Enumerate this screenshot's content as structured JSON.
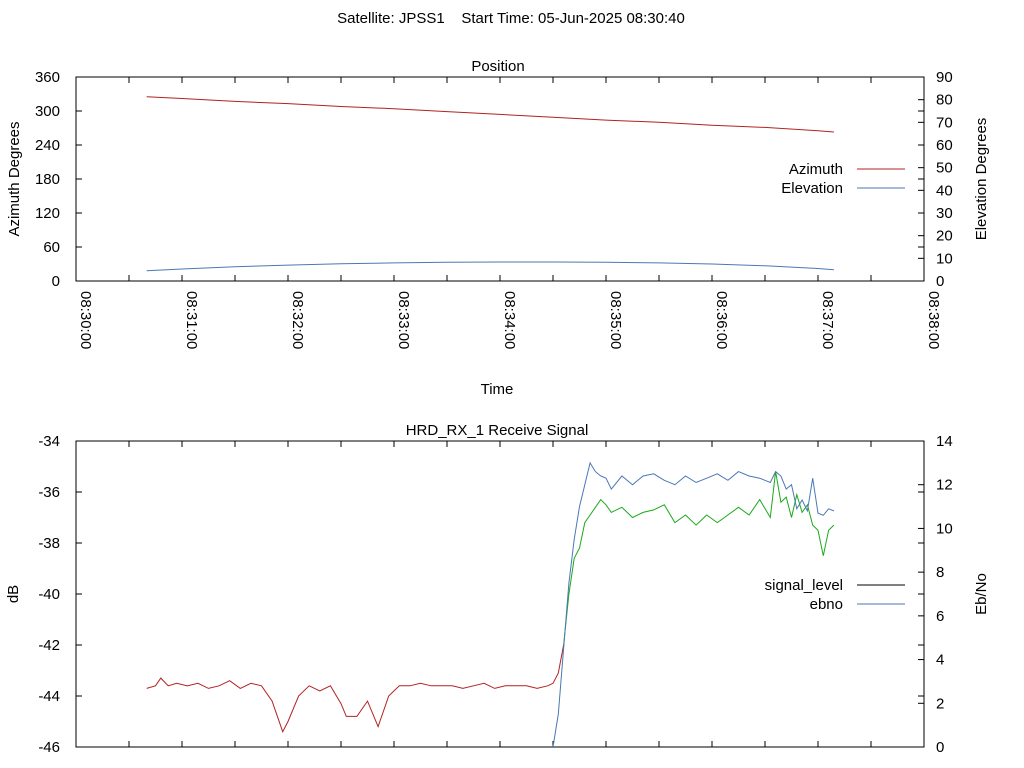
{
  "page_title": "Satellite: JPSS1    Start Time: 05-Jun-2025 08:30:40",
  "colors": {
    "azimuth": "#b22222",
    "elevation": "#4a78b4",
    "signal_level_before": "#b22222",
    "signal_level_after": "#1aaa1a",
    "signal_legend": "#000000",
    "ebno": "#4a78b4"
  },
  "chart_data": [
    {
      "type": "line",
      "title": "Position",
      "xlabel": "Time",
      "ylabel": "Azimuth Degrees",
      "y2label": "Elevation Degrees",
      "x_ticks": [
        "08:30:00",
        "08:31:00",
        "08:32:00",
        "08:33:00",
        "08:34:00",
        "08:35:00",
        "08:36:00",
        "08:37:00",
        "08:38:00"
      ],
      "xlim_min": [
        0,
        8
      ],
      "ylim": [
        0,
        360
      ],
      "y_ticks": [
        "0",
        "60",
        "120",
        "180",
        "240",
        "300",
        "360"
      ],
      "y2lim": [
        0,
        90
      ],
      "y2_ticks": [
        "0",
        "10",
        "20",
        "30",
        "40",
        "50",
        "60",
        "70",
        "80",
        "90"
      ],
      "legend_position": "right",
      "series": [
        {
          "name": "Azimuth",
          "axis": "y",
          "x": [
            0.667,
            1,
            1.5,
            2,
            2.5,
            3,
            3.5,
            4,
            4.5,
            5,
            5.5,
            6,
            6.5,
            7,
            7.15
          ],
          "y": [
            325,
            322,
            317,
            313,
            308,
            304,
            299,
            294,
            289,
            284,
            280,
            275,
            271,
            265,
            263
          ]
        },
        {
          "name": "Elevation",
          "axis": "y2",
          "x": [
            0.667,
            1,
            1.5,
            2,
            2.5,
            3,
            3.5,
            4,
            4.5,
            5,
            5.5,
            6,
            6.5,
            7,
            7.15
          ],
          "y": [
            4.5,
            5.3,
            6.3,
            7.0,
            7.6,
            8.0,
            8.3,
            8.4,
            8.4,
            8.3,
            8.0,
            7.5,
            6.7,
            5.5,
            5.0
          ]
        }
      ]
    },
    {
      "type": "line",
      "title": "HRD_RX_1 Receive Signal",
      "ylabel": "dB",
      "y2label": "Eb/No",
      "xlim_min": [
        0,
        8
      ],
      "ylim": [
        -46,
        -34
      ],
      "y_ticks": [
        "-34",
        "-36",
        "-38",
        "-40",
        "-42",
        "-44",
        "-46"
      ],
      "y2lim": [
        0,
        14
      ],
      "y2_ticks": [
        "0",
        "2",
        "4",
        "6",
        "8",
        "10",
        "12",
        "14"
      ],
      "legend_position": "right",
      "series": [
        {
          "name": "signal_level",
          "axis": "y",
          "x": [
            0.667,
            0.75,
            0.8,
            0.87,
            0.95,
            1.05,
            1.15,
            1.25,
            1.35,
            1.45,
            1.55,
            1.65,
            1.75,
            1.85,
            1.95,
            2.0,
            2.1,
            2.2,
            2.3,
            2.4,
            2.5,
            2.55,
            2.65,
            2.75,
            2.85,
            2.95,
            3.05,
            3.15,
            3.25,
            3.35,
            3.45,
            3.55,
            3.65,
            3.75,
            3.85,
            3.95,
            4.05,
            4.15,
            4.25,
            4.35,
            4.45,
            4.5,
            4.55,
            4.6,
            4.65,
            4.7,
            4.75,
            4.8,
            4.85,
            4.9,
            4.95,
            5.0,
            5.05,
            5.15,
            5.25,
            5.35,
            5.45,
            5.55,
            5.65,
            5.75,
            5.85,
            5.95,
            6.05,
            6.15,
            6.25,
            6.35,
            6.45,
            6.55,
            6.6,
            6.65,
            6.7,
            6.75,
            6.8,
            6.85,
            6.9,
            6.95,
            7.0,
            7.05,
            7.1,
            7.15
          ],
          "y": [
            -43.7,
            -43.6,
            -43.3,
            -43.6,
            -43.5,
            -43.6,
            -43.5,
            -43.7,
            -43.6,
            -43.4,
            -43.7,
            -43.5,
            -43.6,
            -44.2,
            -45.4,
            -45.0,
            -44.0,
            -43.6,
            -43.8,
            -43.6,
            -44.3,
            -44.8,
            -44.8,
            -44.2,
            -45.2,
            -44.0,
            -43.6,
            -43.6,
            -43.5,
            -43.6,
            -43.6,
            -43.6,
            -43.7,
            -43.6,
            -43.5,
            -43.7,
            -43.6,
            -43.6,
            -43.6,
            -43.7,
            -43.6,
            -43.5,
            -43.1,
            -42.0,
            -40.0,
            -38.6,
            -38.2,
            -37.2,
            -36.9,
            -36.6,
            -36.3,
            -36.5,
            -36.8,
            -36.6,
            -37.0,
            -36.8,
            -36.7,
            -36.5,
            -37.2,
            -36.9,
            -37.3,
            -36.9,
            -37.2,
            -36.9,
            -36.6,
            -36.9,
            -36.3,
            -37.0,
            -35.2,
            -36.4,
            -36.2,
            -37.0,
            -36.1,
            -36.8,
            -36.5,
            -37.3,
            -37.5,
            -38.5,
            -37.5,
            -37.3
          ]
        },
        {
          "name": "ebno",
          "axis": "y2",
          "x": [
            4.5,
            4.55,
            4.6,
            4.65,
            4.7,
            4.75,
            4.8,
            4.85,
            4.9,
            4.95,
            5.0,
            5.05,
            5.15,
            5.25,
            5.35,
            5.45,
            5.55,
            5.65,
            5.75,
            5.85,
            5.95,
            6.05,
            6.15,
            6.25,
            6.35,
            6.45,
            6.55,
            6.6,
            6.65,
            6.7,
            6.75,
            6.8,
            6.85,
            6.9,
            6.95,
            7.0,
            7.05,
            7.1,
            7.15
          ],
          "y": [
            0.0,
            1.5,
            4.5,
            7.5,
            9.5,
            11.0,
            12.0,
            13.0,
            12.6,
            12.4,
            12.3,
            11.8,
            12.4,
            12.0,
            12.4,
            12.5,
            12.2,
            12.0,
            12.4,
            12.1,
            12.3,
            12.5,
            12.2,
            12.6,
            12.4,
            12.3,
            12.1,
            12.6,
            12.4,
            11.8,
            12.0,
            10.9,
            11.3,
            10.8,
            12.3,
            10.7,
            10.6,
            10.9,
            10.8
          ]
        }
      ]
    }
  ]
}
